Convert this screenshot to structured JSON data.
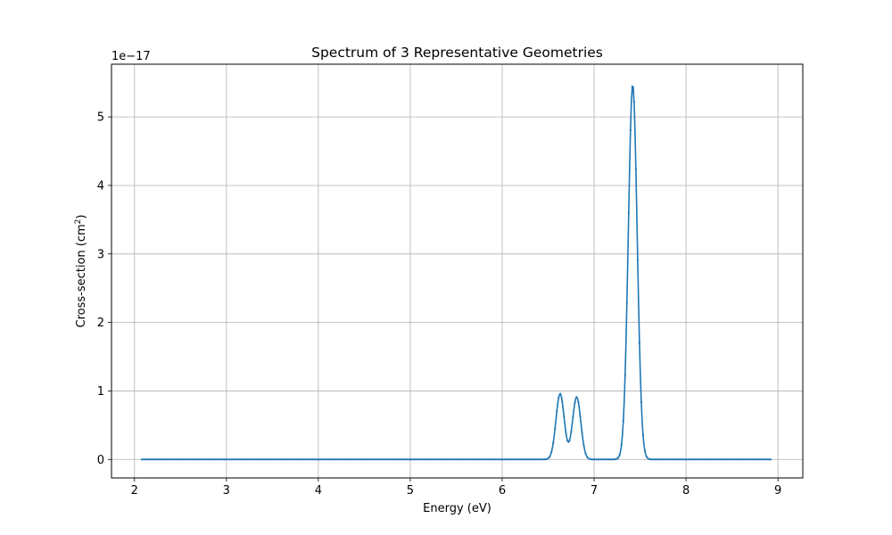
{
  "chart_data": {
    "type": "line",
    "title": "Spectrum of 3 Representative Geometries",
    "xlabel": "Energy (eV)",
    "ylabel_main": "Cross-section (cm",
    "ylabel_sup": "2",
    "ylabel_end": ")",
    "offset_text": "1e−17",
    "xlim": [
      1.75,
      9.27
    ],
    "ylim": [
      -0.27,
      5.77
    ],
    "x_ticks": [
      2,
      3,
      4,
      5,
      6,
      7,
      8,
      9
    ],
    "x_tick_labels": [
      "2",
      "3",
      "4",
      "5",
      "6",
      "7",
      "8",
      "9"
    ],
    "y_ticks": [
      0,
      1,
      2,
      3,
      4,
      5
    ],
    "y_tick_labels": [
      "0",
      "1",
      "2",
      "3",
      "4",
      "5"
    ],
    "grid": true,
    "line_color": "#1f77b4",
    "x_range": [
      2.08,
      8.92
    ],
    "series": [
      {
        "name": "",
        "marker": "point",
        "peaks": [
          {
            "center": 6.63,
            "height": 0.96,
            "sigma": 0.045
          },
          {
            "center": 6.81,
            "height": 0.91,
            "sigma": 0.045
          },
          {
            "center": 7.42,
            "height": 5.47,
            "sigma": 0.048
          }
        ]
      }
    ]
  }
}
